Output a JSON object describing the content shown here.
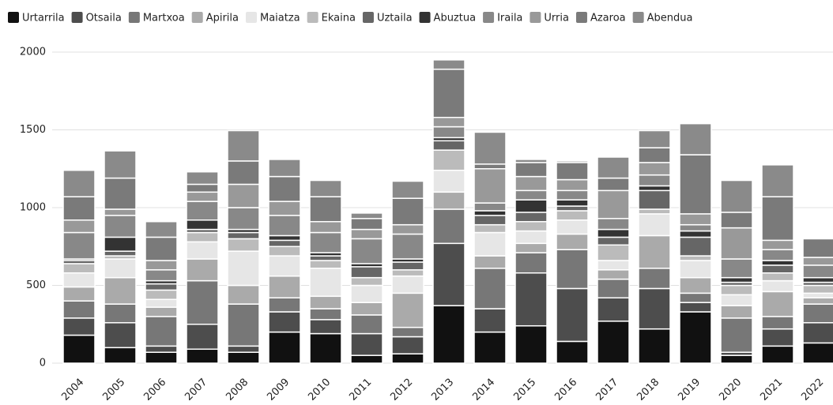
{
  "chart_data": {
    "type": "stacked_bar",
    "categories": [
      "2004",
      "2005",
      "2006",
      "2007",
      "2008",
      "2009",
      "2010",
      "2011",
      "2012",
      "2013",
      "2014",
      "2015",
      "2016",
      "2017",
      "2018",
      "2019",
      "2020",
      "2021",
      "2022"
    ],
    "series": [
      {
        "name": "Urtarrila",
        "color": "#111111",
        "values": [
          180,
          100,
          70,
          90,
          70,
          200,
          190,
          50,
          60,
          370,
          200,
          240,
          140,
          270,
          220,
          330,
          50,
          110,
          130
        ]
      },
      {
        "name": "Otsaila",
        "color": "#4d4d4d",
        "values": [
          110,
          160,
          40,
          160,
          40,
          130,
          90,
          140,
          110,
          400,
          150,
          340,
          340,
          150,
          260,
          60,
          20,
          110,
          130
        ]
      },
      {
        "name": "Martxoa",
        "color": "#777777",
        "values": [
          110,
          120,
          190,
          280,
          270,
          90,
          70,
          120,
          60,
          220,
          260,
          130,
          250,
          120,
          130,
          60,
          220,
          80,
          120
        ]
      },
      {
        "name": "Apirila",
        "color": "#aaaaaa",
        "values": [
          90,
          170,
          60,
          140,
          120,
          140,
          80,
          80,
          220,
          110,
          80,
          60,
          100,
          60,
          210,
          100,
          80,
          160,
          40
        ]
      },
      {
        "name": "Maiatza",
        "color": "#e6e6e6",
        "values": [
          90,
          120,
          50,
          110,
          220,
          130,
          180,
          110,
          110,
          140,
          150,
          80,
          90,
          60,
          140,
          110,
          70,
          70,
          30
        ]
      },
      {
        "name": "Ekaina",
        "color": "#bbbbbb",
        "values": [
          60,
          20,
          60,
          60,
          80,
          60,
          50,
          50,
          40,
          130,
          50,
          60,
          60,
          100,
          30,
          30,
          60,
          50,
          50
        ]
      },
      {
        "name": "Uztaila",
        "color": "#666666",
        "values": [
          20,
          30,
          40,
          20,
          40,
          40,
          30,
          70,
          50,
          60,
          60,
          60,
          30,
          50,
          120,
          120,
          20,
          50,
          20
        ]
      },
      {
        "name": "Abuztua",
        "color": "#333333",
        "values": [
          10,
          90,
          20,
          60,
          20,
          30,
          20,
          20,
          20,
          20,
          30,
          80,
          40,
          50,
          30,
          40,
          30,
          30,
          30
        ]
      },
      {
        "name": "Iraila",
        "color": "#888888",
        "values": [
          170,
          140,
          70,
          120,
          140,
          130,
          130,
          160,
          160,
          70,
          50,
          60,
          60,
          70,
          70,
          40,
          120,
          70,
          80
        ]
      },
      {
        "name": "Urria",
        "color": "#999999",
        "values": [
          80,
          40,
          60,
          60,
          150,
          90,
          70,
          60,
          60,
          60,
          220,
          90,
          70,
          180,
          80,
          70,
          200,
          60,
          50
        ]
      },
      {
        "name": "Azaroa",
        "color": "#7a7a7a",
        "values": [
          150,
          200,
          150,
          50,
          150,
          160,
          160,
          70,
          170,
          310,
          30,
          90,
          110,
          80,
          95,
          380,
          100,
          280,
          120
        ]
      },
      {
        "name": "Abendua",
        "color": "#8a8a8a",
        "values": [
          170,
          175,
          100,
          80,
          195,
          110,
          105,
          35,
          110,
          60,
          205,
          20,
          10,
          135,
          110,
          200,
          205,
          205,
          5
        ]
      }
    ],
    "ylim": [
      0,
      2000
    ],
    "yticks": [
      0,
      500,
      1000,
      1500,
      2000
    ],
    "grid": true,
    "legend": "top-left"
  }
}
